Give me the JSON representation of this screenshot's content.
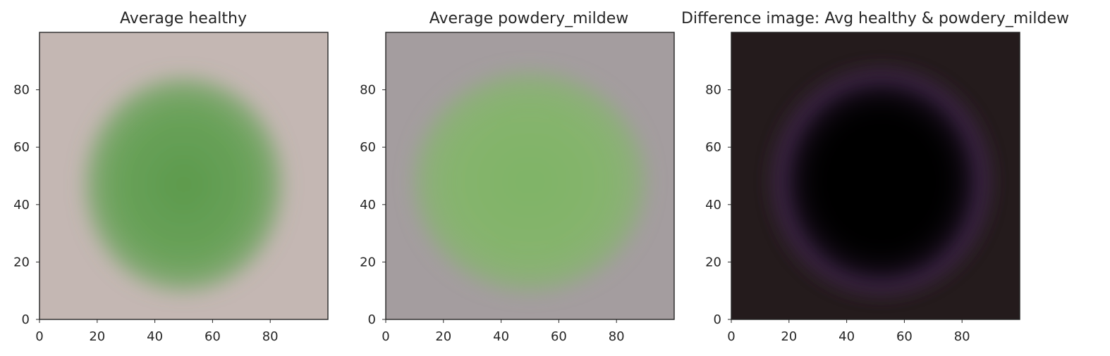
{
  "figure": {
    "background": "#ffffff"
  },
  "chart_data": [
    {
      "type": "heatmap",
      "title": "Average healthy",
      "xlabel": "",
      "ylabel": "",
      "xlim": [
        0,
        100
      ],
      "ylim": [
        100,
        0
      ],
      "xticks": [
        0,
        20,
        40,
        60,
        80
      ],
      "yticks": [
        0,
        20,
        40,
        60,
        80
      ],
      "grid": false,
      "image": {
        "background_color": "#c4b7b3",
        "leaf_color": "#6aa25a",
        "leaf_core_color": "#5c9a4c",
        "leaf_center": [
          50,
          47
        ],
        "leaf_radius": [
          34,
          37
        ]
      }
    },
    {
      "type": "heatmap",
      "title": "Average powdery_mildew",
      "xlabel": "",
      "ylabel": "",
      "xlim": [
        0,
        100
      ],
      "ylim": [
        100,
        0
      ],
      "xticks": [
        0,
        20,
        40,
        60,
        80
      ],
      "yticks": [
        0,
        20,
        40,
        60,
        80
      ],
      "grid": false,
      "image": {
        "background_color": "#a49d9f",
        "leaf_color": "#86b46e",
        "leaf_core_color": "#7fb466",
        "leaf_center": [
          50,
          48
        ],
        "leaf_radius": [
          40,
          38
        ]
      }
    },
    {
      "type": "heatmap",
      "title": "Difference image: Avg healthy & powdery_mildew",
      "xlabel": "",
      "ylabel": "",
      "xlim": [
        0,
        100
      ],
      "ylim": [
        100,
        0
      ],
      "xticks": [
        0,
        20,
        40,
        60,
        80
      ],
      "yticks": [
        0,
        20,
        40,
        60,
        80
      ],
      "grid": false,
      "image": {
        "background_color": "#241b1c",
        "leaf_color": "#000000",
        "leaf_core_color": "#000000",
        "rim_color": "#4a2a56",
        "leaf_center": [
          52,
          48
        ],
        "leaf_radius": [
          33,
          35
        ]
      }
    }
  ]
}
